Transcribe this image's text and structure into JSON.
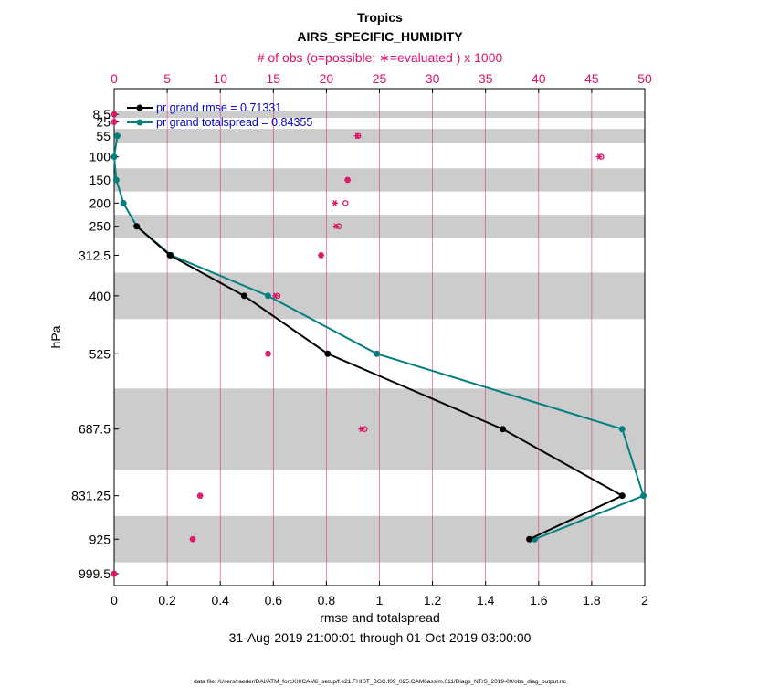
{
  "chart_data": {
    "type": "line",
    "title": "Tropics",
    "subtitle": "AIRS_SPECIFIC_HUMIDITY",
    "top_axis_label": "# of obs (o=possible; ∗=evaluated ) x 1000",
    "xlabel": "rmse and totalspread",
    "ylabel": "hPa",
    "date_range": "31-Aug-2019 21:00:01 through 01-Oct-2019 03:00:00",
    "footer": "data file: /Users/raeder/DAI/ATM_forcXX/CAM6_setup/f.e21.FHIST_BGC.f09_025.CAM6assim.011/Diags_NTrS_2019-09/obs_diag_output.nc",
    "xlim": [
      0,
      2
    ],
    "x_ticks": [
      0,
      0.2,
      0.4,
      0.6,
      0.8,
      1,
      1.2,
      1.4,
      1.6,
      1.8,
      2
    ],
    "top_xlim": [
      0,
      50
    ],
    "top_ticks": [
      0,
      5,
      10,
      15,
      20,
      25,
      30,
      35,
      40,
      45,
      50
    ],
    "ylim_hPa": [
      1025,
      -47
    ],
    "levels": [
      8.5,
      25,
      55,
      100,
      150,
      200,
      250,
      312.5,
      400,
      525,
      687.5,
      831.25,
      925,
      999.5
    ],
    "level_labels": [
      "8.5",
      "25",
      "55",
      "100",
      "150",
      "200",
      "250",
      "312.5",
      "400",
      "525",
      "687.5",
      "831.25",
      "925",
      "999.5"
    ],
    "bands": [
      [
        1,
        16
      ],
      [
        40,
        70
      ],
      [
        125,
        175
      ],
      [
        225,
        275
      ],
      [
        350,
        450
      ],
      [
        600,
        775
      ],
      [
        875,
        975
      ]
    ],
    "series": [
      {
        "name": "pr grand rmse = 0.71331",
        "color": "#000000",
        "levels": [
          250,
          312.5,
          400,
          525,
          687.5,
          831.25,
          925
        ],
        "values": [
          0.085,
          0.21,
          0.49,
          0.805,
          1.465,
          1.915,
          1.565
        ]
      },
      {
        "name": "pr grand totalspread = 0.84355",
        "color": "#00807f",
        "levels": [
          55,
          100,
          150,
          200,
          250,
          312.5,
          400,
          525,
          687.5,
          831.25,
          925
        ],
        "values": [
          0.012,
          0.0,
          0.008,
          0.035,
          0.085,
          0.215,
          0.58,
          0.99,
          1.915,
          1.995,
          1.585
        ]
      }
    ],
    "obs_counts": {
      "color": "#dd1166",
      "levels": [
        8.5,
        25,
        55,
        100,
        150,
        200,
        250,
        312.5,
        400,
        525,
        687.5,
        831.25,
        925,
        999.5
      ],
      "possible": [
        0,
        0,
        23,
        45.9,
        22,
        21.8,
        21.2,
        19.5,
        15.4,
        14.5,
        23.6,
        8.1,
        7.4,
        0
      ],
      "evaluated": [
        0,
        0,
        22.9,
        45.7,
        22,
        20.8,
        20.9,
        19.5,
        15.2,
        14.5,
        23.3,
        8.1,
        7.4,
        0
      ]
    }
  }
}
